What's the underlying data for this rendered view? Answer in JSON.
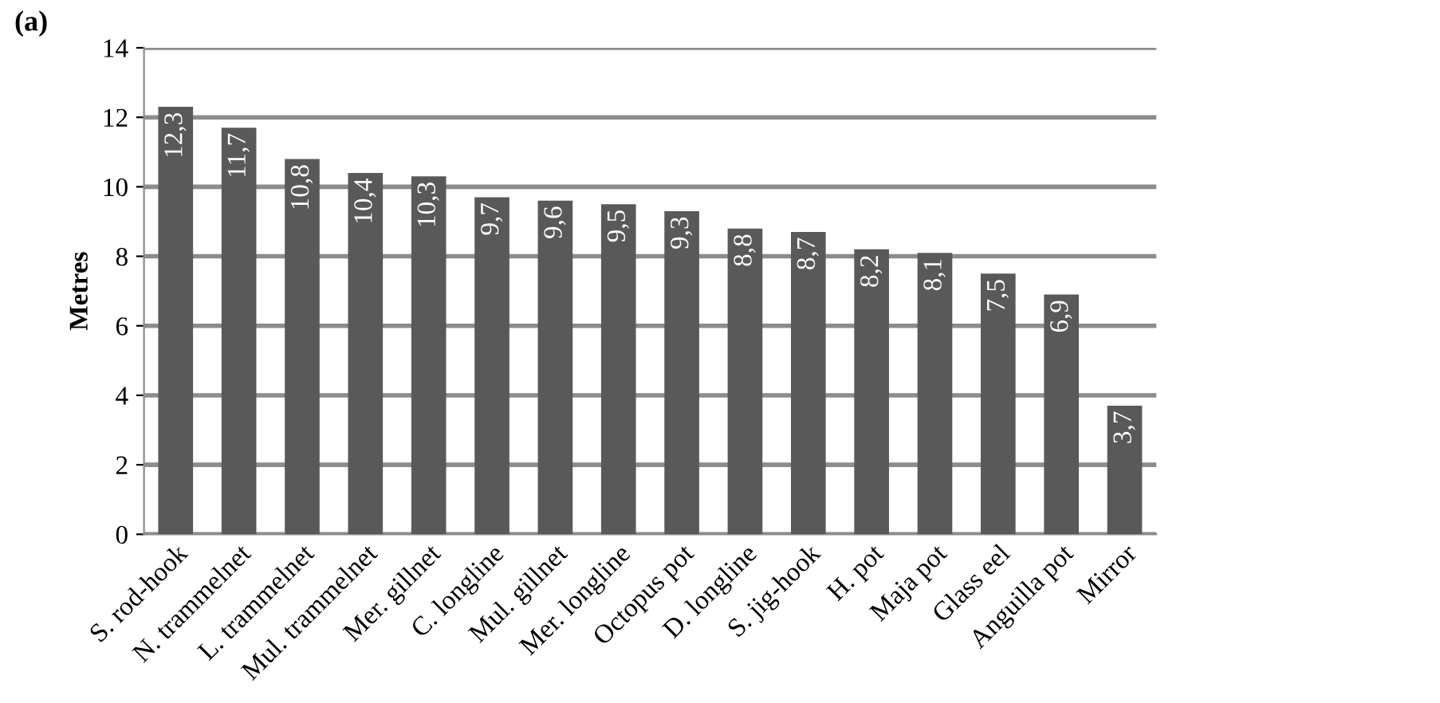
{
  "chart_data": {
    "type": "bar",
    "title": "(a)",
    "ylabel": "Metres",
    "categories": [
      "S. rod-hook",
      "N. trammelnet",
      "L. trammelnet",
      "Mul. trammelnet",
      "Mer. gillnet",
      "C. longline",
      "Mul. gillnet",
      "Mer. longline",
      "Octopus pot",
      "D. longline",
      "S. jig-hook",
      "H. pot",
      "Maja pot",
      "Glass eel",
      "Anguilla pot",
      "Mirror"
    ],
    "values": [
      12.3,
      11.7,
      10.8,
      10.4,
      10.3,
      9.7,
      9.6,
      9.5,
      9.3,
      8.8,
      8.7,
      8.2,
      8.1,
      7.5,
      6.9,
      3.7
    ],
    "value_labels": [
      "12,3",
      "11,7",
      "10,8",
      "10,4",
      "10,3",
      "9,7",
      "9,6",
      "9,5",
      "9,3",
      "8,8",
      "8,7",
      "8,2",
      "8,1",
      "7,5",
      "6,9",
      "3,7"
    ],
    "color": "#595959",
    "ylim": [
      0,
      14
    ],
    "yticks": [
      0,
      2,
      4,
      6,
      8,
      10,
      12,
      14
    ],
    "grid": "y",
    "legend": false
  }
}
